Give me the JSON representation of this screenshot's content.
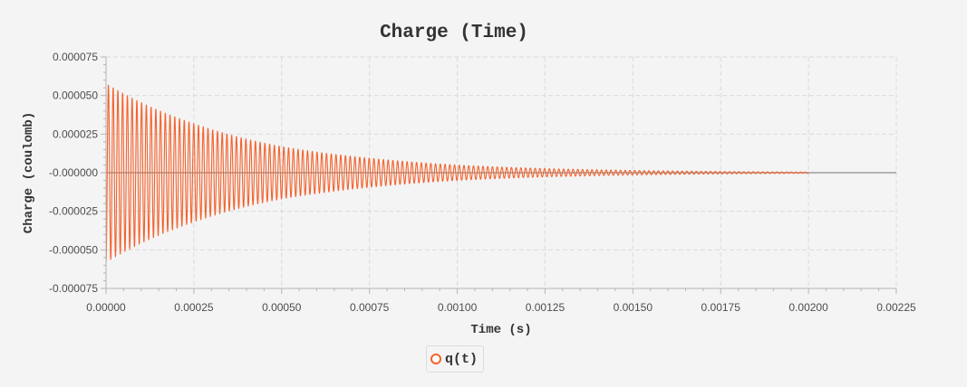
{
  "chart_data": {
    "type": "line",
    "title": "Charge (Time)",
    "xlabel": "Time (s)",
    "ylabel": "Charge (coulomb)",
    "xlim": [
      0,
      0.00225
    ],
    "ylim": [
      -7.5e-05,
      7.5e-05
    ],
    "x_ticks": [
      "0.00000",
      "0.00025",
      "0.00050",
      "0.00075",
      "0.00100",
      "0.00125",
      "0.00150",
      "0.00175",
      "0.00200",
      "0.00225"
    ],
    "y_ticks": [
      "0.000075",
      "0.000050",
      "0.000025",
      "-0.000000",
      "-0.000025",
      "-0.000050",
      "-0.000075"
    ],
    "grid": true,
    "legend_position": "bottom-center",
    "series": [
      {
        "name": "q(t)",
        "color": "#f3622d",
        "x": [
          0,
          0.00025,
          0.0005,
          0.00075,
          0.001,
          0.00125,
          0.0015,
          0.00175,
          0.002
        ],
        "envelope": [
          5.8e-05,
          3.2e-05,
          1.7e-05,
          9.5e-06,
          5e-06,
          2.7e-06,
          1.5e-06,
          8e-07,
          4e-07
        ],
        "oscillation_period": 1.35e-05
      }
    ]
  },
  "legend": {
    "label": "q(t)"
  }
}
